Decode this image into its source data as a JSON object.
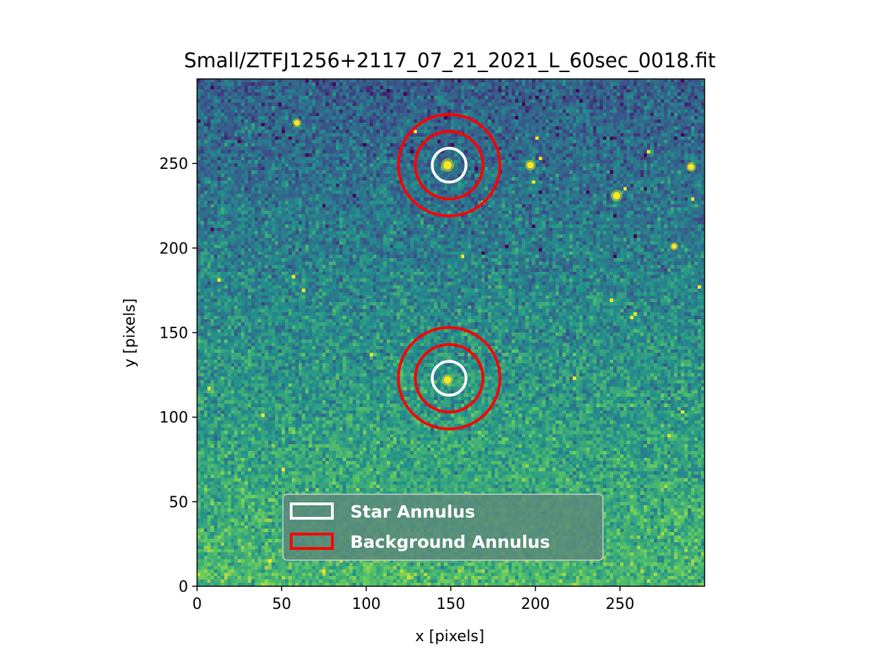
{
  "chart_data": {
    "type": "image",
    "title": "Small/ZTFJ1256+2117_07_21_2021_L_60sec_0018.fit",
    "xlabel": "x [pixels]",
    "ylabel": "y [pixels]",
    "xlim": [
      0,
      300
    ],
    "ylim": [
      0,
      300
    ],
    "xticks": [
      0,
      50,
      100,
      150,
      200,
      250
    ],
    "yticks": [
      0,
      50,
      100,
      150,
      200,
      250
    ],
    "colormap": "viridis",
    "grid": false,
    "legend": {
      "placement": "lower-center",
      "entries": [
        {
          "label": "Star Annulus",
          "color": "#ffffff"
        },
        {
          "label": "Background Annulus",
          "color": "#ff0000"
        }
      ]
    },
    "apertures": [
      {
        "x": 149,
        "y": 249,
        "star_radius": 10,
        "background_inner_radius": 20,
        "background_outer_radius": 30
      },
      {
        "x": 149,
        "y": 123,
        "star_radius": 10,
        "background_inner_radius": 20,
        "background_outer_radius": 30
      }
    ],
    "stars": [
      {
        "x": 148,
        "y": 249,
        "brightness": 1.0
      },
      {
        "x": 148,
        "y": 122,
        "brightness": 0.8
      },
      {
        "x": 197,
        "y": 249,
        "brightness": 0.7
      },
      {
        "x": 248,
        "y": 231,
        "brightness": 0.8
      },
      {
        "x": 292,
        "y": 248,
        "brightness": 0.6
      },
      {
        "x": 59,
        "y": 274,
        "brightness": 0.5
      },
      {
        "x": 282,
        "y": 201,
        "brightness": 0.4
      }
    ]
  }
}
